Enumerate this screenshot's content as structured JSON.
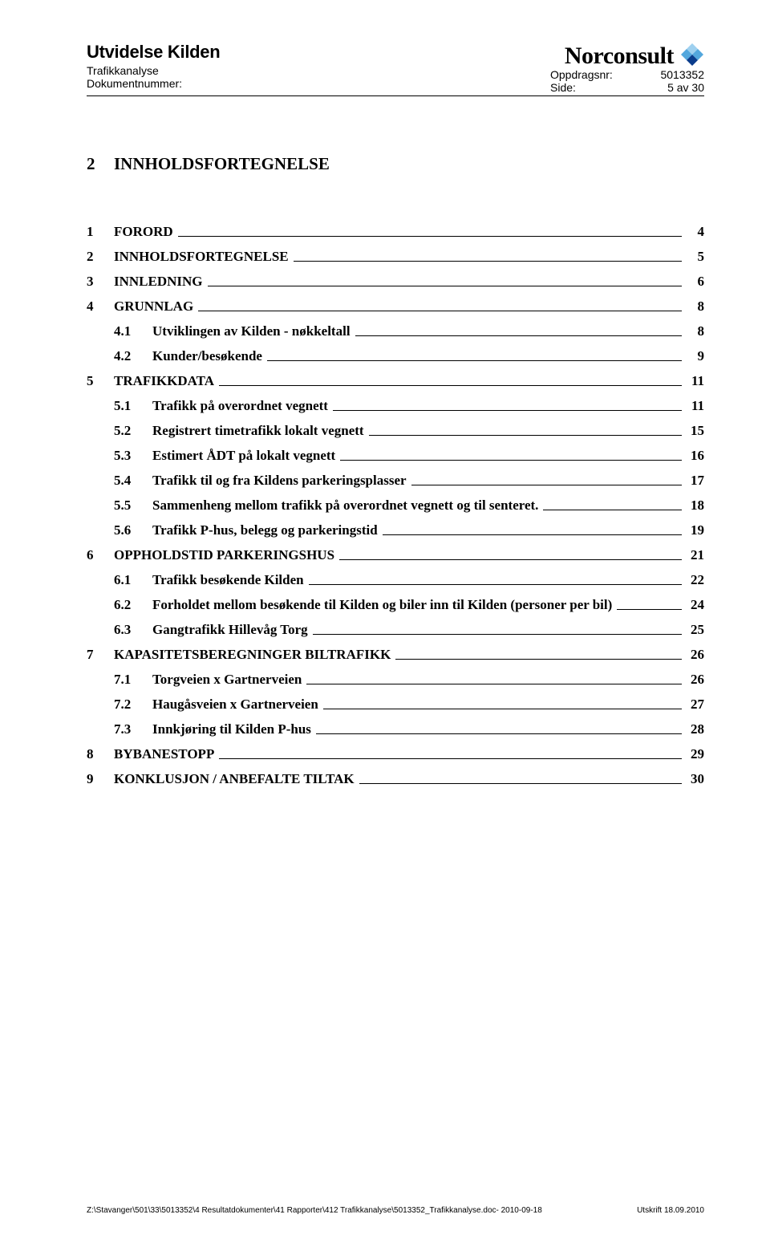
{
  "header": {
    "title": "Utvidelse Kilden",
    "sub1": "Trafikkanalyse",
    "sub2": "Dokumentnummer:",
    "brand": "Norconsult",
    "meta": [
      {
        "label": "Oppdragsnr:",
        "value": "5013352"
      },
      {
        "label": "Side:",
        "value": "5 av 30"
      }
    ],
    "logo_colors": {
      "a": "#0a3c8c",
      "b": "#53a7dd",
      "c": "#9ed0ef"
    }
  },
  "toc_heading": {
    "num": "2",
    "text": "INNHOLDSFORTEGNELSE"
  },
  "toc": [
    {
      "lvl": 1,
      "num": "1",
      "label": "FORORD",
      "page": "4"
    },
    {
      "lvl": 1,
      "num": "2",
      "label": "INNHOLDSFORTEGNELSE",
      "page": "5"
    },
    {
      "lvl": 1,
      "num": "3",
      "label": "INNLEDNING",
      "page": "6"
    },
    {
      "lvl": 1,
      "num": "4",
      "label": "GRUNNLAG",
      "page": "8"
    },
    {
      "lvl": 2,
      "num": "4.1",
      "label": "Utviklingen av Kilden - nøkkeltall",
      "page": "8"
    },
    {
      "lvl": 2,
      "num": "4.2",
      "label": "Kunder/besøkende",
      "page": "9"
    },
    {
      "lvl": 1,
      "num": "5",
      "label": "TRAFIKKDATA",
      "page": "11"
    },
    {
      "lvl": 2,
      "num": "5.1",
      "label": "Trafikk på overordnet vegnett",
      "page": "11"
    },
    {
      "lvl": 2,
      "num": "5.2",
      "label": "Registrert timetrafikk lokalt vegnett",
      "page": "15"
    },
    {
      "lvl": 2,
      "num": "5.3",
      "label": "Estimert ÅDT på lokalt vegnett",
      "page": "16"
    },
    {
      "lvl": 2,
      "num": "5.4",
      "label": "Trafikk til og fra Kildens parkeringsplasser",
      "page": "17"
    },
    {
      "lvl": 2,
      "num": "5.5",
      "label": "Sammenheng mellom trafikk på overordnet vegnett og til senteret.",
      "page": "18"
    },
    {
      "lvl": 2,
      "num": "5.6",
      "label": "Trafikk P-hus, belegg og parkeringstid",
      "page": "19"
    },
    {
      "lvl": 1,
      "num": "6",
      "label": "OPPHOLDSTID PARKERINGSHUS",
      "page": "21"
    },
    {
      "lvl": 2,
      "num": "6.1",
      "label": "Trafikk besøkende Kilden",
      "page": "22"
    },
    {
      "lvl": 2,
      "num": "6.2",
      "label": "Forholdet mellom besøkende til Kilden og biler inn til Kilden (personer per bil)",
      "page": "24",
      "wide": true
    },
    {
      "lvl": 2,
      "num": "6.3",
      "label": "Gangtrafikk Hillevåg Torg",
      "page": "25"
    },
    {
      "lvl": 1,
      "num": "7",
      "label": "KAPASITETSBEREGNINGER BILTRAFIKK",
      "page": "26"
    },
    {
      "lvl": 2,
      "num": "7.1",
      "label": "Torgveien x Gartnerveien",
      "page": "26"
    },
    {
      "lvl": 2,
      "num": "7.2",
      "label": "Haugåsveien x Gartnerveien",
      "page": "27"
    },
    {
      "lvl": 2,
      "num": "7.3",
      "label": "Innkjøring til Kilden P-hus",
      "page": "28"
    },
    {
      "lvl": 1,
      "num": "8",
      "label": "BYBANESTOPP",
      "page": "29"
    },
    {
      "lvl": 1,
      "num": "9",
      "label": "KONKLUSJON / ANBEFALTE TILTAK",
      "page": "30"
    }
  ],
  "footer": {
    "left": "Z:\\Stavanger\\501\\33\\5013352\\4 Resultatdokumenter\\41 Rapporter\\412 Trafikkanalyse\\5013352_Trafikkanalyse.doc- 2010-09-18",
    "right": "Utskrift 18.09.2010"
  }
}
